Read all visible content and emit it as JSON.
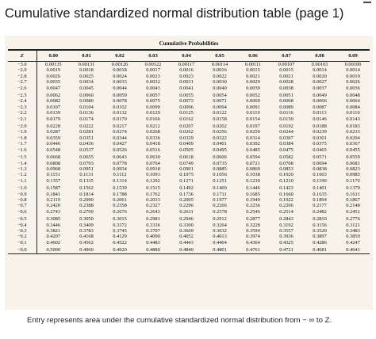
{
  "title": "Cumulative standardized normal distribution table (page 1)",
  "table": {
    "group_header": "Cumulative Probabilities",
    "z_header": "Z",
    "columns": [
      "0.00",
      "0.01",
      "0.02",
      "0.03",
      "0.04",
      "0.05",
      "0.06",
      "0.07",
      "0.08",
      "0.09"
    ],
    "rows": [
      {
        "z": "−3.0",
        "v": [
          "0.00135",
          "0.00131",
          "0.00126",
          "0.00122",
          "0.00117",
          "0.00114",
          "0.00111",
          "0.00107",
          "0.00103",
          "0.00100"
        ]
      },
      {
        "z": "−2.9",
        "v": [
          "0.0019",
          "0.0018",
          "0.0018",
          "0.0017",
          "0.0016",
          "0.0016",
          "0.0015",
          "0.0015",
          "0.0014",
          "0.0014"
        ]
      },
      {
        "z": "−2.8",
        "v": [
          "0.0026",
          "0.0025",
          "0.0024",
          "0.0023",
          "0.0023",
          "0.0022",
          "0.0021",
          "0.0021",
          "0.0020",
          "0.0019"
        ]
      },
      {
        "z": "−2.7",
        "v": [
          "0.0035",
          "0.0034",
          "0.0033",
          "0.0032",
          "0.0031",
          "0.0030",
          "0.0029",
          "0.0028",
          "0.0027",
          "0.0026"
        ]
      },
      {
        "z": "−2.6",
        "v": [
          "0.0047",
          "0.0045",
          "0.0044",
          "0.0043",
          "0.0041",
          "0.0040",
          "0.0039",
          "0.0038",
          "0.0037",
          "0.0036"
        ]
      },
      {
        "z": "−2.5",
        "v": [
          "0.0062",
          "0.0060",
          "0.0059",
          "0.0057",
          "0.0055",
          "0.0054",
          "0.0052",
          "0.0051",
          "0.0049",
          "0.0048"
        ]
      },
      {
        "z": "−2.4",
        "v": [
          "0.0082",
          "0.0080",
          "0.0078",
          "0.0075",
          "0.0073",
          "0.0071",
          "0.0069",
          "0.0068",
          "0.0066",
          "0.0064"
        ]
      },
      {
        "z": "−2.3",
        "v": [
          "0.0107",
          "0.0104",
          "0.0102",
          "0.0099",
          "0.0096",
          "0.0094",
          "0.0091",
          "0.0089",
          "0.0087",
          "0.0084"
        ]
      },
      {
        "z": "−2.2",
        "v": [
          "0.0139",
          "0.0136",
          "0.0132",
          "0.0129",
          "0.0125",
          "0.0122",
          "0.0119",
          "0.0116",
          "0.0113",
          "0.0110"
        ]
      },
      {
        "z": "−2.1",
        "v": [
          "0.0179",
          "0.0174",
          "0.0170",
          "0.0166",
          "0.0162",
          "0.0158",
          "0.0154",
          "0.0150",
          "0.0146",
          "0.0143"
        ]
      },
      {
        "z": "−2.0",
        "v": [
          "0.0228",
          "0.0222",
          "0.0217",
          "0.0212",
          "0.0207",
          "0.0202",
          "0.0197",
          "0.0192",
          "0.0188",
          "0.0183"
        ]
      },
      {
        "z": "−1.9",
        "v": [
          "0.0287",
          "0.0281",
          "0.0274",
          "0.0268",
          "0.0262",
          "0.0256",
          "0.0250",
          "0.0244",
          "0.0239",
          "0.0233"
        ]
      },
      {
        "z": "−1.8",
        "v": [
          "0.0359",
          "0.0351",
          "0.0344",
          "0.0336",
          "0.0329",
          "0.0322",
          "0.0314",
          "0.0307",
          "0.0301",
          "0.0294"
        ]
      },
      {
        "z": "−1.7",
        "v": [
          "0.0446",
          "0.0436",
          "0.0427",
          "0.0418",
          "0.0409",
          "0.0401",
          "0.0392",
          "0.0384",
          "0.0375",
          "0.0367"
        ]
      },
      {
        "z": "−1.6",
        "v": [
          "0.0548",
          "0.0537",
          "0.0526",
          "0.0516",
          "0.0505",
          "0.0495",
          "0.0485",
          "0.0475",
          "0.0465",
          "0.0455"
        ]
      },
      {
        "z": "−1.5",
        "v": [
          "0.0668",
          "0.0655",
          "0.0643",
          "0.0630",
          "0.0618",
          "0.0606",
          "0.0594",
          "0.0582",
          "0.0571",
          "0.0559"
        ]
      },
      {
        "z": "−1.4",
        "v": [
          "0.0808",
          "0.0793",
          "0.0778",
          "0.0764",
          "0.0749",
          "0.0735",
          "0.0721",
          "0.0708",
          "0.0694",
          "0.0681"
        ]
      },
      {
        "z": "−1.3",
        "v": [
          "0.0968",
          "0.0951",
          "0.0934",
          "0.0918",
          "0.0901",
          "0.0885",
          "0.0869",
          "0.0853",
          "0.0838",
          "0.0823"
        ]
      },
      {
        "z": "−1.2",
        "v": [
          "0.1151",
          "0.1131",
          "0.1112",
          "0.1093",
          "0.1075",
          "0.1056",
          "0.1038",
          "0.1020",
          "0.1003",
          "0.0985"
        ]
      },
      {
        "z": "−1.1",
        "v": [
          "0.1357",
          "0.1335",
          "0.1314",
          "0.1292",
          "0.1271",
          "0.1251",
          "0.1230",
          "0.1210",
          "0.1190",
          "0.1170"
        ]
      },
      {
        "z": "−1.0",
        "v": [
          "0.1587",
          "0.1562",
          "0.1539",
          "0.1515",
          "0.1492",
          "0.1469",
          "0.1446",
          "0.1423",
          "0.1401",
          "0.1379"
        ]
      },
      {
        "z": "−0.9",
        "v": [
          "0.1841",
          "0.1814",
          "0.1788",
          "0.1762",
          "0.1736",
          "0.1711",
          "0.1685",
          "0.1660",
          "0.1635",
          "0.1611"
        ]
      },
      {
        "z": "−0.8",
        "v": [
          "0.2119",
          "0.2090",
          "0.2061",
          "0.2033",
          "0.2005",
          "0.1977",
          "0.1949",
          "0.1922",
          "0.1894",
          "0.1867"
        ]
      },
      {
        "z": "−0.7",
        "v": [
          "0.2420",
          "0.2388",
          "0.2358",
          "0.2327",
          "0.2296",
          "0.2266",
          "0.2236",
          "0.2206",
          "0.2177",
          "0.2148"
        ]
      },
      {
        "z": "−0.6",
        "v": [
          "0.2743",
          "0.2709",
          "0.2676",
          "0.2643",
          "0.2611",
          "0.2578",
          "0.2546",
          "0.2514",
          "0.2482",
          "0.2451"
        ]
      },
      {
        "z": "−0.5",
        "v": [
          "0.3085",
          "0.3050",
          "0.3015",
          "0.2981",
          "0.2946",
          "0.2912",
          "0.2877",
          "0.2843",
          "0.2810",
          "0.2776"
        ]
      },
      {
        "z": "−0.4",
        "v": [
          "0.3446",
          "0.3409",
          "0.3372",
          "0.3336",
          "0.3300",
          "0.3264",
          "0.3228",
          "0.3192",
          "0.3156",
          "0.3121"
        ]
      },
      {
        "z": "−0.3",
        "v": [
          "0.3821",
          "0.3783",
          "0.3745",
          "0.3707",
          "0.3669",
          "0.3632",
          "0.3594",
          "0.3557",
          "0.3520",
          "0.3483"
        ]
      },
      {
        "z": "−0.2",
        "v": [
          "0.4207",
          "0.4168",
          "0.4129",
          "0.4090",
          "0.4052",
          "0.4013",
          "0.3974",
          "0.3936",
          "0.3897",
          "0.3859"
        ]
      },
      {
        "z": "−0.1",
        "v": [
          "0.4602",
          "0.4562",
          "0.4522",
          "0.4483",
          "0.4443",
          "0.4404",
          "0.4364",
          "0.4325",
          "0.4286",
          "0.4247"
        ]
      },
      {
        "z": "−0.0",
        "v": [
          "0.5000",
          "0.4960",
          "0.4920",
          "0.4880",
          "0.4840",
          "0.4801",
          "0.4761",
          "0.4721",
          "0.4681",
          "0.4641"
        ]
      }
    ]
  },
  "caption": "Entry represents area under the cumulative standardized normal distribution from − ∞ to Z."
}
